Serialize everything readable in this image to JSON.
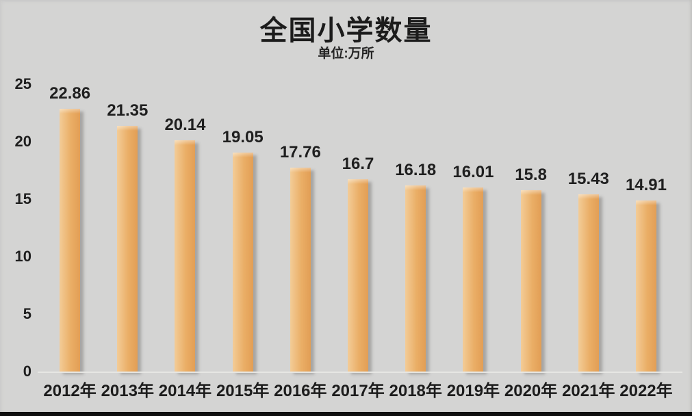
{
  "slide": {
    "title": "全国小学数量",
    "subtitle": "单位:万所"
  },
  "chart_data": {
    "type": "bar",
    "title": "全国小学数量",
    "unit_label": "单位:万所",
    "xlabel": "",
    "ylabel": "",
    "categories": [
      "2012年",
      "2013年",
      "2014年",
      "2015年",
      "2016年",
      "2017年",
      "2018年",
      "2019年",
      "2020年",
      "2021年",
      "2022年"
    ],
    "values": [
      22.86,
      21.35,
      20.14,
      19.05,
      17.76,
      16.7,
      16.18,
      16.01,
      15.8,
      15.43,
      14.91
    ],
    "value_labels": [
      "22.86",
      "21.35",
      "20.14",
      "19.05",
      "17.76",
      "16.7",
      "16.18",
      "16.01",
      "15.8",
      "15.43",
      "14.91"
    ],
    "yticks": [
      0,
      5,
      10,
      15,
      20,
      25
    ],
    "ylim": [
      0,
      25
    ],
    "grid": false,
    "legend": "none",
    "colors": {
      "background": "#d4d4d3",
      "text": "#1c1c1c",
      "bar_gradient": [
        "#f3cc97",
        "#eaae66",
        "#e29e55"
      ],
      "baseline": "#e6e6e3",
      "bottom_strip": "#0e0e0e"
    }
  }
}
